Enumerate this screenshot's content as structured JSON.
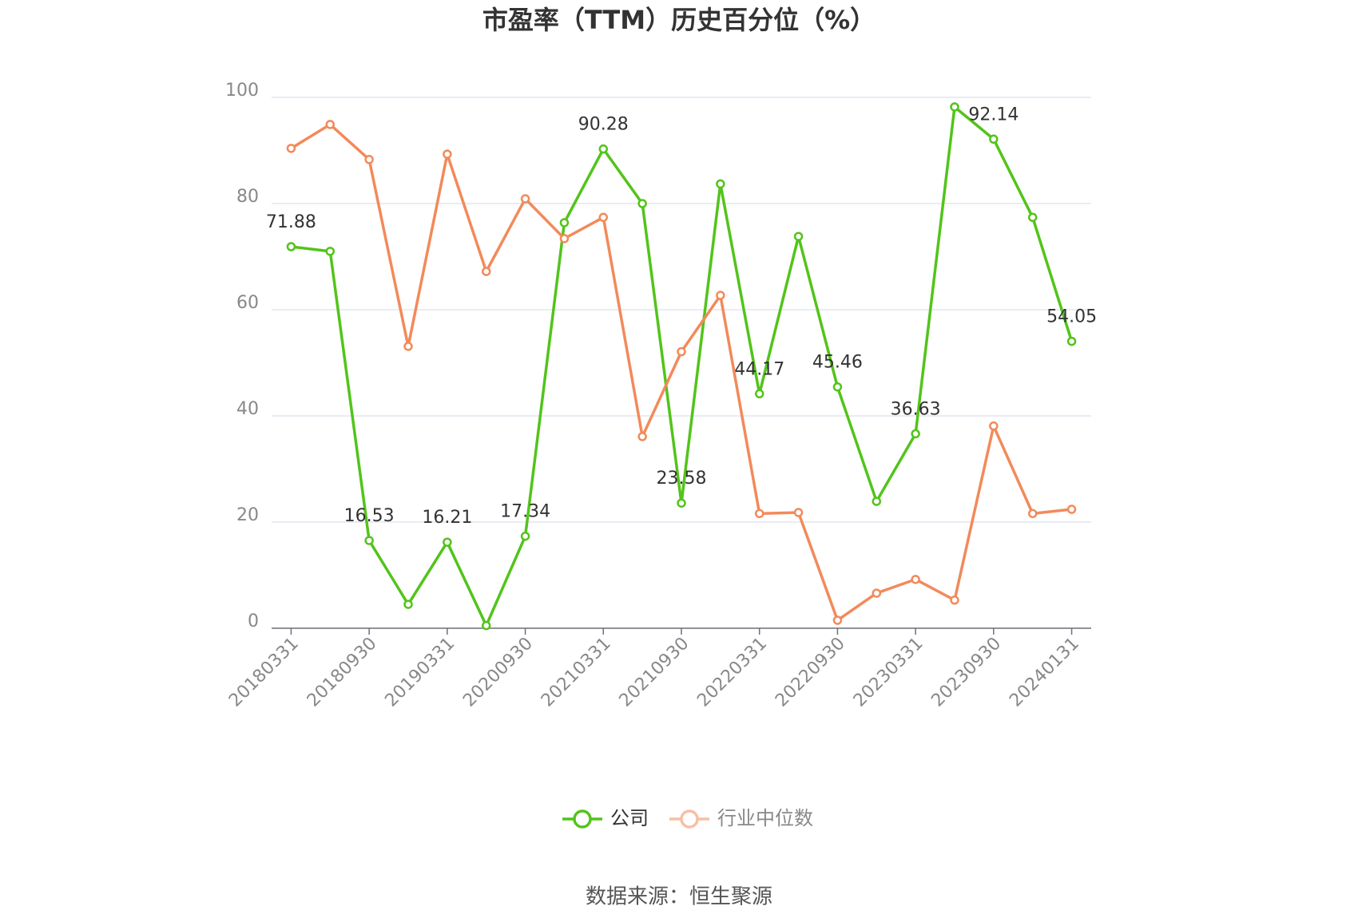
{
  "chart_data": {
    "type": "line",
    "title": "市盈率（TTM）历史百分位（%）",
    "categories": [
      "20180331",
      null,
      "20180930",
      null,
      "20190331",
      null,
      "20200930",
      null,
      "20210331",
      null,
      "20210930",
      null,
      "20220331",
      null,
      "20220930",
      null,
      "20230331",
      null,
      "20230930",
      null,
      "20240131"
    ],
    "series": [
      {
        "name": "公司",
        "color": "#52c41a",
        "values": [
          71.88,
          71.0,
          16.53,
          4.5,
          16.21,
          0.5,
          17.34,
          76.4,
          90.28,
          80.0,
          23.58,
          83.7,
          44.17,
          73.8,
          45.46,
          23.9,
          36.63,
          98.2,
          92.14,
          77.4,
          54.05
        ],
        "value_labels": [
          "71.88",
          null,
          "16.53",
          null,
          "16.21",
          null,
          "17.34",
          null,
          "90.28",
          null,
          "23.58",
          null,
          "44.17",
          null,
          "45.46",
          null,
          "36.63",
          null,
          "92.14",
          null,
          "54.05"
        ]
      },
      {
        "name": "行业中位数",
        "color": "#f28a5a",
        "values": [
          90.4,
          94.9,
          88.3,
          53.1,
          89.3,
          67.2,
          80.9,
          73.4,
          77.4,
          36.1,
          52.1,
          62.7,
          21.6,
          21.8,
          1.5,
          6.6,
          9.2,
          5.3,
          38.1,
          21.6,
          22.4
        ]
      }
    ],
    "ylim": [
      0,
      100
    ],
    "yticks": [
      0,
      20,
      40,
      60,
      80,
      100
    ],
    "grid": true,
    "source": "数据来源：恒生聚源"
  }
}
